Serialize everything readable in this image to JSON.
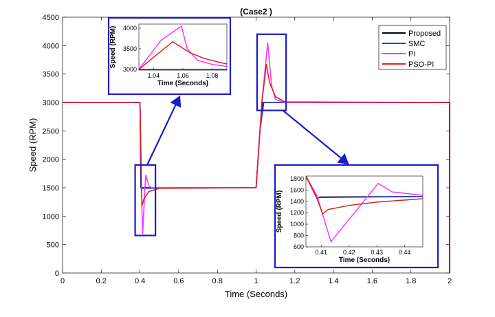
{
  "chart_data": {
    "type": "line",
    "title": "(Case2 )",
    "xlabel": "Time (Seconds)",
    "ylabel": "Speed (RPM)",
    "xlim": [
      0,
      2
    ],
    "ylim": [
      0,
      4500
    ],
    "xticks": [
      "0",
      "0.2",
      "0.4",
      "0.6",
      "0.8",
      "1",
      "1.2",
      "1.4",
      "1.6",
      "1.8",
      "2"
    ],
    "yticks": [
      "0",
      "500",
      "1000",
      "1500",
      "2000",
      "2500",
      "3000",
      "3500",
      "4000",
      "4500"
    ],
    "grid": false,
    "legend_position": "top-right",
    "series": [
      {
        "name": "Proposed",
        "color": "#000000",
        "x": [
          0,
          0.4,
          0.405,
          0.41,
          1.0,
          1.02,
          1.035,
          2.0,
          2.0
        ],
        "y": [
          3000,
          3000,
          1500,
          1500,
          1500,
          2500,
          3000,
          3000,
          0
        ]
      },
      {
        "name": "SMC",
        "color": "#1f3fff",
        "x": [
          0,
          0.4,
          0.407,
          0.412,
          1.0,
          1.02,
          1.04,
          2.0,
          2.0
        ],
        "y": [
          3000,
          3000,
          1480,
          1490,
          1500,
          2500,
          3000,
          3000,
          0
        ]
      },
      {
        "name": "PI",
        "color": "#ff33ff",
        "x": [
          0,
          0.4,
          0.41,
          0.414,
          0.425,
          0.43,
          0.445,
          0.46,
          1.0,
          1.03,
          1.06,
          1.08,
          1.1,
          1.15,
          2.0,
          2.0
        ],
        "y": [
          3000,
          3000,
          1200,
          690,
          1450,
          1720,
          1540,
          1500,
          1500,
          3000,
          4050,
          3300,
          3050,
          3000,
          3000,
          0
        ]
      },
      {
        "name": "PSO-PI",
        "color": "#e02020",
        "x": [
          0,
          0.4,
          0.41,
          0.42,
          0.445,
          0.5,
          1.0,
          1.03,
          1.053,
          1.07,
          1.1,
          1.15,
          2.0,
          2.0
        ],
        "y": [
          3000,
          3000,
          1180,
          1300,
          1430,
          1490,
          1500,
          3000,
          3670,
          3350,
          3100,
          3010,
          3000,
          0
        ]
      }
    ],
    "insets": [
      {
        "xlabel": "Time (Seconds)",
        "ylabel": "Speed (RPM)",
        "xlim": [
          1.03,
          1.09
        ],
        "ylim": [
          2980,
          4100
        ],
        "xticks": [
          "1.04",
          "1.06",
          "1.08"
        ],
        "yticks": [
          "3000",
          "3500",
          "4000"
        ],
        "series": [
          {
            "name": "Proposed",
            "x": [
              1.03,
              1.09
            ],
            "y": [
              3000,
              3000
            ]
          },
          {
            "name": "SMC",
            "x": [
              1.03,
              1.09
            ],
            "y": [
              3000,
              3000
            ]
          },
          {
            "name": "PI",
            "x": [
              1.03,
              1.045,
              1.059,
              1.063,
              1.07,
              1.08,
              1.09
            ],
            "y": [
              3000,
              3700,
              4050,
              3500,
              3220,
              3120,
              3070
            ]
          },
          {
            "name": "PSO-PI",
            "x": [
              1.03,
              1.053,
              1.065,
              1.075,
              1.085,
              1.09
            ],
            "y": [
              3000,
              3670,
              3400,
              3260,
              3170,
              3130
            ]
          }
        ]
      },
      {
        "xlabel": "Time (Seconds)",
        "ylabel": "Speed (RPM)",
        "xlim": [
          0.4045,
          0.4465
        ],
        "ylim": [
          600,
          1850
        ],
        "xticks": [
          "0.41",
          "0.42",
          "0.43",
          "0.44"
        ],
        "yticks": [
          "600",
          "800",
          "1000",
          "1200",
          "1400",
          "1600",
          "1800"
        ],
        "series": [
          {
            "name": "Proposed",
            "x": [
              0.4045,
              0.4085,
              0.4095,
              0.4465
            ],
            "y": [
              1850,
              1450,
              1480,
              1490
            ]
          },
          {
            "name": "SMC",
            "x": [
              0.4045,
              0.4085,
              0.4095,
              0.4465
            ],
            "y": [
              1850,
              1460,
              1470,
              1490
            ]
          },
          {
            "name": "PI",
            "x": [
              0.4045,
              0.4085,
              0.4135,
              0.4305,
              0.4355,
              0.4465
            ],
            "y": [
              1850,
              1500,
              690,
              1720,
              1570,
              1510
            ]
          },
          {
            "name": "PSO-PI",
            "x": [
              0.4045,
              0.4085,
              0.4105,
              0.4125,
              0.42,
              0.43,
              0.4465
            ],
            "y": [
              1850,
              1450,
              1180,
              1260,
              1330,
              1390,
              1450
            ]
          }
        ]
      }
    ]
  }
}
